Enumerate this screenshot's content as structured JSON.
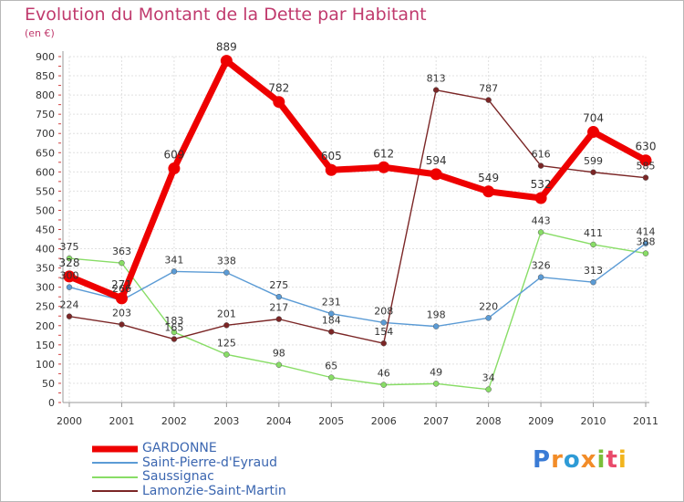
{
  "chart_data": {
    "type": "line",
    "title": "Evolution du Montant de la Dette par Habitant",
    "subtitle": "(en €)",
    "xlabel": "",
    "ylabel": "",
    "x": [
      "2000",
      "2001",
      "2002",
      "2003",
      "2004",
      "2005",
      "2006",
      "2007",
      "2008",
      "2009",
      "2010",
      "2011"
    ],
    "ylim": [
      0,
      900
    ],
    "yticks": [
      0,
      50,
      100,
      150,
      200,
      250,
      300,
      350,
      400,
      450,
      500,
      550,
      600,
      650,
      700,
      750,
      800,
      850,
      900
    ],
    "grid": true,
    "legend_position": "bottom-left",
    "series": [
      {
        "name": "Saussignac",
        "color": "#88dd66",
        "values": [
          375,
          363,
          183,
          125,
          98,
          65,
          46,
          49,
          34,
          443,
          411,
          388
        ],
        "labels": [
          "375",
          "363",
          "183",
          "125",
          "98",
          "65",
          "46",
          "49",
          "34",
          "443",
          "411",
          "388"
        ]
      },
      {
        "name": "Saint-Pierre-d'Eyraud",
        "color": "#5b9bd5",
        "values": [
          300,
          266,
          341,
          338,
          275,
          231,
          208,
          198,
          220,
          326,
          313,
          414
        ],
        "labels": [
          "300",
          "266",
          "341",
          "338",
          "275",
          "231",
          "208",
          "198",
          "220",
          "326",
          "313",
          "414"
        ]
      },
      {
        "name": "Lamonzie-Saint-Martin",
        "color": "#7b2626",
        "values": [
          224,
          203,
          165,
          201,
          217,
          184,
          154,
          813,
          787,
          616,
          599,
          585
        ],
        "labels": [
          "224",
          "203",
          "165",
          "201",
          "217",
          "184",
          "154",
          "813",
          "787",
          "616",
          "599",
          "585"
        ]
      },
      {
        "name": "GARDONNE",
        "color": "#ee0000",
        "values": [
          328,
          271,
          609,
          889,
          782,
          605,
          612,
          594,
          549,
          532,
          704,
          630
        ],
        "labels": [
          "328",
          "271",
          "609",
          "889",
          "782",
          "605",
          "612",
          "594",
          "549",
          "532",
          "704",
          "630"
        ]
      }
    ],
    "legend": [
      "GARDONNE",
      "Saint-Pierre-d'Eyraud",
      "Saussignac",
      "Lamonzie-Saint-Martin"
    ]
  },
  "logo": {
    "letters": [
      "P",
      "r",
      "o",
      "x",
      "i",
      "t",
      "i"
    ],
    "colors": [
      "#3a7bd5",
      "#f28c28",
      "#2e9bd6",
      "#f28c28",
      "#7bbf3a",
      "#e94b6b",
      "#f2b51e"
    ]
  }
}
